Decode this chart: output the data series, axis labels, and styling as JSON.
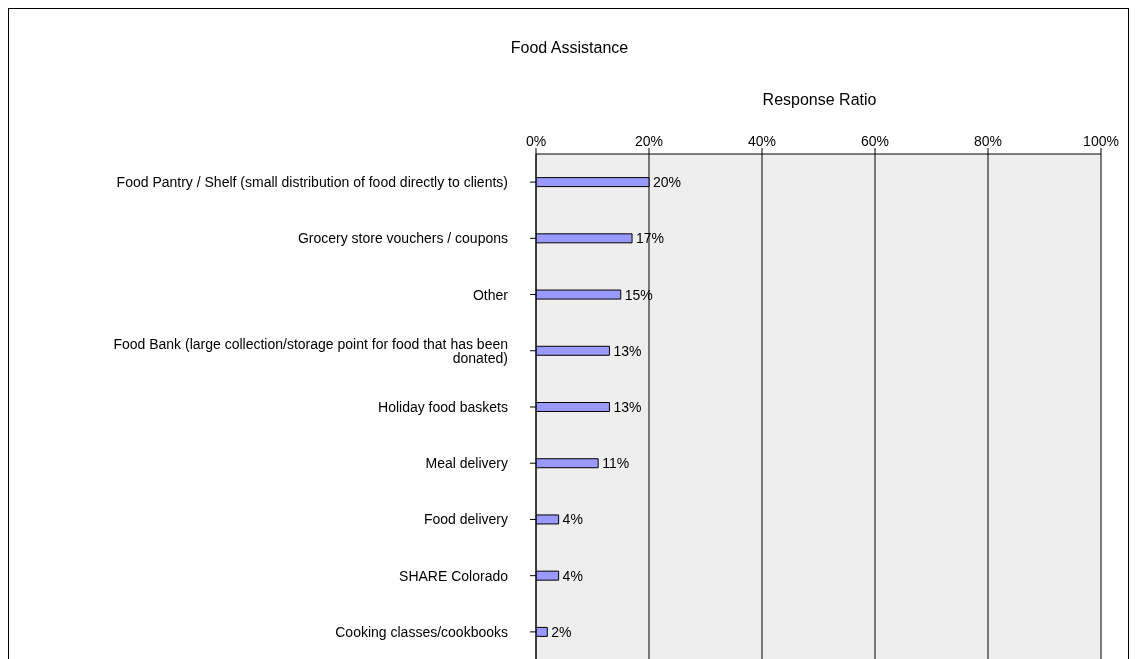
{
  "chart_data": {
    "type": "bar",
    "orientation": "horizontal",
    "title": "Food Assistance",
    "xlabel": "Response Ratio",
    "categories": [
      "Food Pantry / Shelf (small distribution of food directly to clients)",
      "Grocery store vouchers / coupons",
      "Other",
      "Food Bank (large collection/storage point for food that has been donated)",
      "Holiday food baskets",
      "Meal delivery",
      "Food delivery",
      "SHARE Colorado",
      "Cooking classes/cookbooks"
    ],
    "values": [
      20,
      17,
      15,
      13,
      13,
      11,
      4,
      4,
      2
    ],
    "value_labels": [
      "20%",
      "17%",
      "15%",
      "13%",
      "13%",
      "11%",
      "4%",
      "4%",
      "2%"
    ],
    "color": "#9999ff",
    "xlim": [
      0,
      100
    ],
    "xticks": [
      {
        "value": 0,
        "label": "0%"
      },
      {
        "value": 20,
        "label": "20%"
      },
      {
        "value": 40,
        "label": "40%"
      },
      {
        "value": 60,
        "label": "60%"
      },
      {
        "value": 80,
        "label": "80%"
      },
      {
        "value": 100,
        "label": "100%"
      }
    ],
    "grid": "x",
    "legend": false
  }
}
